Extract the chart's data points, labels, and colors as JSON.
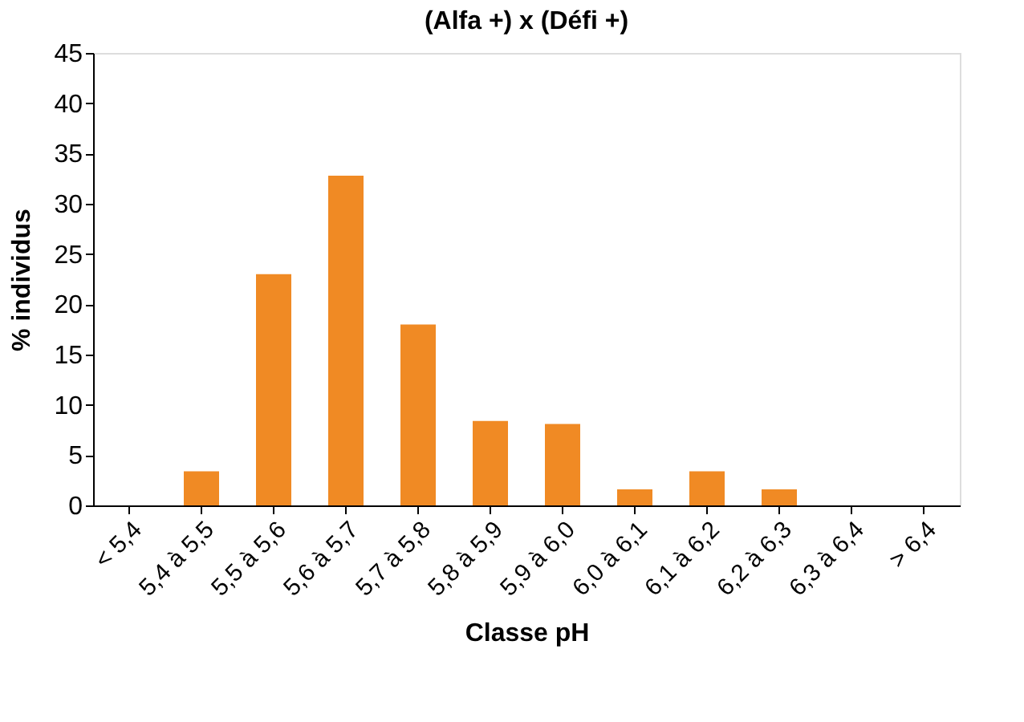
{
  "chart_data": {
    "type": "bar",
    "title": "(Alfa +) x (Défi +)",
    "xlabel": "Classe pH",
    "ylabel": "% individus",
    "categories": [
      "< 5,4",
      "5,4 à 5,5",
      "5,5 à 5,6",
      "5,6 à 5,7",
      "5,7 à 5,8",
      "5,8 à 5,9",
      "5,9 à 6,0",
      "6,0 à 6,1",
      "6,1 à 6,2",
      "6,2 à 6,3",
      "6,3 à 6,4",
      "> 6,4"
    ],
    "values": [
      0,
      3.4,
      23,
      32.8,
      18,
      8.4,
      8.1,
      1.6,
      3.4,
      1.6,
      0,
      0
    ],
    "color": "#f08a24",
    "ylim": [
      0,
      45
    ],
    "yticks": [
      0,
      5,
      10,
      15,
      20,
      25,
      30,
      35,
      40,
      45
    ],
    "grid": false
  }
}
